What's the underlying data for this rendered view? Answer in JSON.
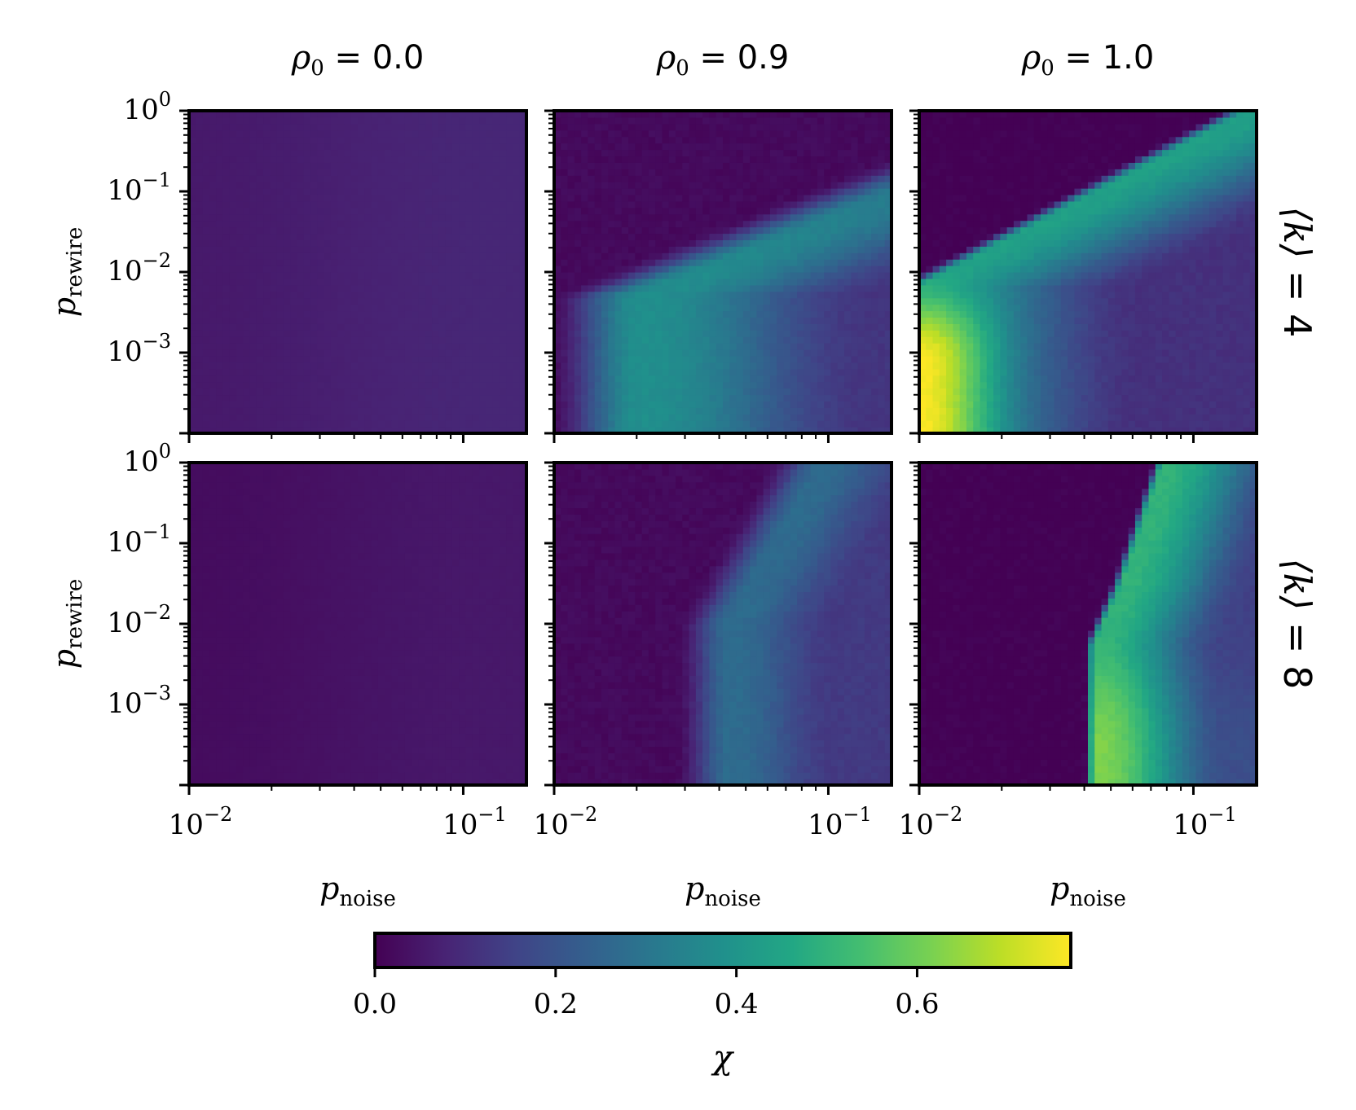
{
  "chart_data": {
    "type": "heatmap",
    "colormap": "viridis",
    "columns": [
      {
        "rho0_label": "= 0.0",
        "rho0": 0.0
      },
      {
        "rho0_label": "= 0.9",
        "rho0": 0.9
      },
      {
        "rho0_label": "= 1.0",
        "rho0": 1.0
      }
    ],
    "rows": [
      {
        "k_label": "= 4",
        "k": 4
      },
      {
        "k_label": "= 8",
        "k": 8
      }
    ],
    "row_label_symbol": "⟨k⟩",
    "col_label_symbol": "ρ",
    "col_label_subscript": "0",
    "x_axis": {
      "symbol": "p",
      "subscript": "noise",
      "scale": "log",
      "range": [
        0.01,
        0.17
      ],
      "ticks": [
        {
          "base": "10",
          "exp": "−2",
          "value": 0.01
        },
        {
          "base": "10",
          "exp": "−1",
          "value": 0.1
        }
      ]
    },
    "y_axis": {
      "symbol": "p",
      "subscript": "rewire",
      "scale": "log",
      "range": [
        0.0001,
        1
      ],
      "ticks": [
        {
          "base": "10",
          "exp": "0",
          "value": 1
        },
        {
          "base": "10",
          "exp": "−1",
          "value": 0.1
        },
        {
          "base": "10",
          "exp": "−2",
          "value": 0.01
        },
        {
          "base": "10",
          "exp": "−3",
          "value": 0.001
        }
      ]
    },
    "colorbar": {
      "label": "χ",
      "range": [
        0,
        0.77
      ],
      "ticks": [
        {
          "label": "0.0",
          "value": 0.0
        },
        {
          "label": "0.2",
          "value": 0.2
        },
        {
          "label": "0.4",
          "value": 0.4
        },
        {
          "label": "0.6",
          "value": 0.6
        }
      ]
    },
    "grid": false
  }
}
